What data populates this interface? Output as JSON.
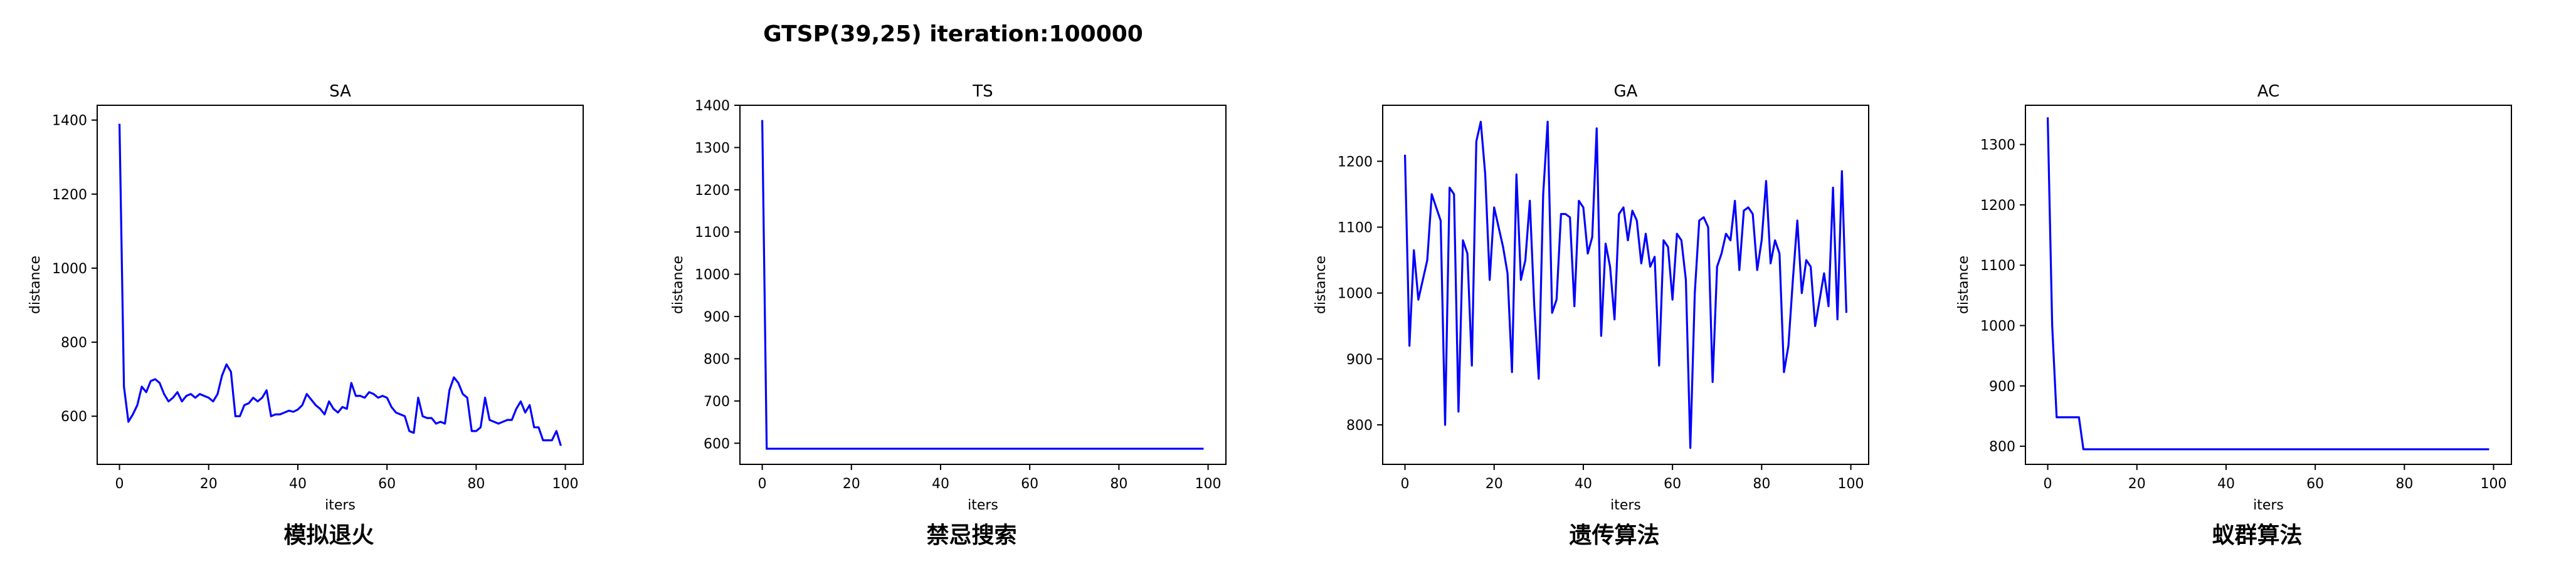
{
  "figure": {
    "suptitle": "GTSP(39,25) iteration:100000"
  },
  "colors": {
    "line": "#0000ff",
    "axes": "#000000",
    "background": "#ffffff"
  },
  "chart_data": [
    {
      "type": "line",
      "title": "SA",
      "xlabel": "iters",
      "ylabel": "distance",
      "caption": "模拟退火",
      "xlim": [
        -5,
        104
      ],
      "ylim": [
        470,
        1440
      ],
      "xticks": [
        0,
        20,
        40,
        60,
        80,
        100
      ],
      "yticks": [
        600,
        800,
        1000,
        1200,
        1400
      ],
      "grid": false,
      "legend": "none",
      "series": [
        {
          "x": [
            0,
            1,
            2,
            3,
            4,
            5,
            6,
            7,
            8,
            9,
            10,
            11,
            12,
            13,
            14,
            15,
            16,
            17,
            18,
            19,
            20,
            21,
            22,
            23,
            24,
            25,
            26,
            27,
            28,
            29,
            30,
            31,
            32,
            33,
            34,
            35,
            36,
            37,
            38,
            39,
            40,
            41,
            42,
            43,
            44,
            45,
            46,
            47,
            48,
            49,
            50,
            51,
            52,
            53,
            54,
            55,
            56,
            57,
            58,
            59,
            60,
            61,
            62,
            63,
            64,
            65,
            66,
            67,
            68,
            69,
            70,
            71,
            72,
            73,
            74,
            75,
            76,
            77,
            78,
            79,
            80,
            81,
            82,
            83,
            84,
            85,
            86,
            87,
            88,
            89,
            90,
            91,
            92,
            93,
            94,
            95,
            96,
            97,
            98,
            99
          ],
          "values": [
            1390,
            680,
            585,
            605,
            630,
            680,
            665,
            695,
            700,
            690,
            660,
            640,
            650,
            665,
            640,
            655,
            660,
            650,
            660,
            655,
            650,
            640,
            660,
            710,
            740,
            720,
            600,
            600,
            630,
            635,
            650,
            640,
            650,
            670,
            600,
            605,
            605,
            610,
            615,
            612,
            618,
            630,
            660,
            645,
            630,
            620,
            605,
            640,
            620,
            610,
            625,
            620,
            690,
            655,
            655,
            650,
            665,
            660,
            650,
            655,
            650,
            625,
            610,
            605,
            600,
            560,
            555,
            650,
            600,
            595,
            595,
            580,
            585,
            580,
            670,
            705,
            690,
            660,
            650,
            560,
            560,
            570,
            650,
            590,
            585,
            580,
            585,
            590,
            590,
            620,
            640,
            610,
            630,
            570,
            570,
            535,
            535,
            535,
            560,
            520
          ]
        }
      ]
    },
    {
      "type": "line",
      "title": "TS",
      "xlabel": "iters",
      "ylabel": "distance",
      "caption": "禁忌搜索",
      "xlim": [
        -5,
        104
      ],
      "ylim": [
        550,
        1400
      ],
      "xticks": [
        0,
        20,
        40,
        60,
        80,
        100
      ],
      "yticks": [
        600,
        700,
        800,
        900,
        1000,
        1100,
        1200,
        1300,
        1400
      ],
      "grid": false,
      "legend": "none",
      "series": [
        {
          "x": [
            0,
            1,
            99
          ],
          "values": [
            1365,
            587,
            587
          ]
        }
      ]
    },
    {
      "type": "line",
      "title": "GA",
      "xlabel": "iters",
      "ylabel": "distance",
      "caption": "遗传算法",
      "xlim": [
        -5,
        104
      ],
      "ylim": [
        740,
        1285
      ],
      "xticks": [
        0,
        20,
        40,
        60,
        80,
        100
      ],
      "yticks": [
        800,
        900,
        1000,
        1100,
        1200
      ],
      "grid": false,
      "legend": "none",
      "series": [
        {
          "x": [
            0,
            1,
            2,
            3,
            4,
            5,
            6,
            7,
            8,
            9,
            10,
            11,
            12,
            13,
            14,
            15,
            16,
            17,
            18,
            19,
            20,
            21,
            22,
            23,
            24,
            25,
            26,
            27,
            28,
            29,
            30,
            31,
            32,
            33,
            34,
            35,
            36,
            37,
            38,
            39,
            40,
            41,
            42,
            43,
            44,
            45,
            46,
            47,
            48,
            49,
            50,
            51,
            52,
            53,
            54,
            55,
            56,
            57,
            58,
            59,
            60,
            61,
            62,
            63,
            64,
            65,
            66,
            67,
            68,
            69,
            70,
            71,
            72,
            73,
            74,
            75,
            76,
            77,
            78,
            79,
            80,
            81,
            82,
            83,
            84,
            85,
            86,
            87,
            88,
            89,
            90,
            91,
            92,
            93,
            94,
            95,
            96,
            97,
            98,
            99
          ],
          "values": [
            1210,
            920,
            1065,
            990,
            1020,
            1050,
            1150,
            1130,
            1110,
            800,
            1160,
            1150,
            820,
            1080,
            1060,
            890,
            1230,
            1260,
            1180,
            1020,
            1130,
            1100,
            1070,
            1030,
            880,
            1180,
            1020,
            1050,
            1140,
            980,
            870,
            1150,
            1260,
            970,
            990,
            1120,
            1120,
            1115,
            980,
            1140,
            1130,
            1060,
            1085,
            1250,
            935,
            1075,
            1040,
            960,
            1120,
            1130,
            1080,
            1125,
            1110,
            1045,
            1090,
            1040,
            1055,
            890,
            1080,
            1070,
            990,
            1090,
            1080,
            1020,
            765,
            1000,
            1110,
            1115,
            1100,
            865,
            1040,
            1060,
            1090,
            1080,
            1140,
            1035,
            1125,
            1130,
            1120,
            1035,
            1080,
            1170,
            1045,
            1080,
            1060,
            880,
            920,
            1020,
            1110,
            1000,
            1050,
            1040,
            950,
            990,
            1030,
            980,
            1160,
            960,
            1185,
            970
          ]
        }
      ]
    },
    {
      "type": "line",
      "title": "AC",
      "xlabel": "iters",
      "ylabel": "distance",
      "caption": "蚁群算法",
      "xlim": [
        -5,
        104
      ],
      "ylim": [
        770,
        1365
      ],
      "xticks": [
        0,
        20,
        40,
        60,
        80,
        100
      ],
      "yticks": [
        800,
        900,
        1000,
        1100,
        1200,
        1300
      ],
      "grid": false,
      "legend": "none",
      "series": [
        {
          "x": [
            0,
            1,
            2,
            3,
            4,
            5,
            6,
            7,
            8,
            99
          ],
          "values": [
            1345,
            1000,
            848,
            848,
            848,
            848,
            848,
            848,
            795,
            795
          ]
        }
      ]
    }
  ]
}
